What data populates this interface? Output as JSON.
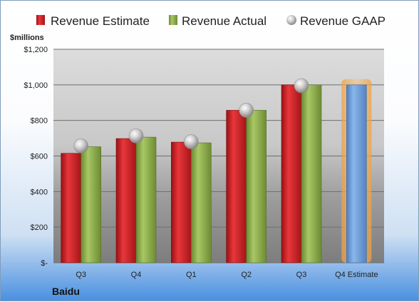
{
  "chart_data": {
    "type": "bar",
    "unit_label": "$millions",
    "company": "Baidu",
    "categories": [
      "Q3",
      "Q4",
      "Q1",
      "Q2",
      "Q3",
      "Q4 Estimate"
    ],
    "series": [
      {
        "name": "Revenue Estimate",
        "values": [
          615,
          698,
          678,
          857,
          1000,
          null
        ],
        "color": "#d42a2f"
      },
      {
        "name": "Revenue Actual",
        "values": [
          652,
          706,
          674,
          857,
          1000,
          null
        ],
        "color": "#8fae4c"
      },
      {
        "name": "Revenue GAAP",
        "values": [
          657,
          713,
          680,
          857,
          995,
          null
        ],
        "color": "#bfbfbf"
      },
      {
        "name": "Q4 Estimate",
        "values": [
          null,
          null,
          null,
          null,
          null,
          1000
        ],
        "color": "#6f9fd8"
      }
    ],
    "ylim": [
      0,
      1200
    ],
    "yticks": [
      0,
      200,
      400,
      600,
      800,
      1000,
      1200
    ],
    "ytick_labels": [
      "$-",
      "$200",
      "$400",
      "$600",
      "$800",
      "$1,000",
      "$1,200"
    ],
    "grid": true,
    "legend_position": "top",
    "highlight_category": "Q4 Estimate",
    "highlight_color": "#f3a34a"
  }
}
